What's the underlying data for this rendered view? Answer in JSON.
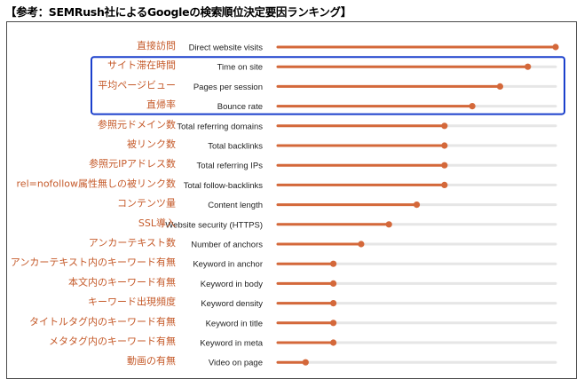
{
  "heading": "【参考：SEMRush社によるGoogleの検索順位決定要因ランキング】",
  "colors": {
    "bar": "#d4683a",
    "track": "#e6e6e6",
    "label_ja": "#c55a2a",
    "highlight_box": "#1a3fcc"
  },
  "highlight": {
    "color": "#1a3fcc",
    "rows": [
      1,
      2,
      3
    ]
  },
  "chart_data": {
    "type": "bar",
    "orientation": "horizontal",
    "style": "lollipop",
    "xlim": [
      0,
      100
    ],
    "axis_visible": false,
    "grid": false,
    "legend": "none",
    "categories": [
      "Direct website visits",
      "Time on site",
      "Pages per session",
      "Bounce rate",
      "Total referring domains",
      "Total backlinks",
      "Total referring IPs",
      "Total follow-backlinks",
      "Content length",
      "Website security (HTTPS)",
      "Number of anchors",
      "Keyword in anchor",
      "Keyword in body",
      "Keyword density",
      "Keyword in title",
      "Keyword in meta",
      "Video on page"
    ],
    "categories_ja": [
      "直接訪問",
      "サイト滞在時間",
      "平均ページビュー",
      "直帰率",
      "参照元ドメイン数",
      "被リンク数",
      "参照元IPアドレス数",
      "rel=nofollow属性無しの被リンク数",
      "コンテンツ量",
      "SSL導入",
      "アンカーテキスト数",
      "アンカーテキスト内のキーワード有無",
      "本文内のキーワード有無",
      "キーワード出現頻度",
      "タイトルタグ内のキーワード有無",
      "メタタグ内のキーワード有無",
      "動画の有無"
    ],
    "values": [
      100,
      90,
      80,
      70,
      60,
      60,
      60,
      60,
      50,
      40,
      30,
      20,
      20,
      20,
      20,
      20,
      10
    ]
  }
}
